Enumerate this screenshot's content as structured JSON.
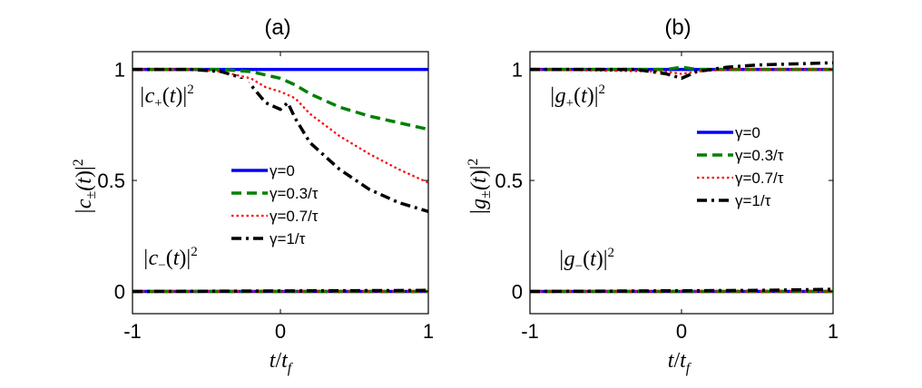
{
  "chart_data": [
    {
      "type": "line",
      "title": "(a)",
      "xlabel": "t/t_f",
      "ylabel": "|c±(t)|²",
      "xlim": [
        -1,
        1
      ],
      "ylim": [
        -0.1,
        1.08
      ],
      "xticks": [
        "-1",
        "0",
        "1"
      ],
      "yticks": [
        "0",
        "0.5",
        "1"
      ],
      "annotations": [
        "|c+(t)|²",
        "|c−(t)|²"
      ],
      "legend_position": "center-right",
      "series": [
        {
          "name": "γ=0",
          "color": "#0000ff",
          "dash": "solid",
          "upper": {
            "x": [
              -1,
              1
            ],
            "y": [
              1,
              1
            ]
          },
          "lower": {
            "x": [
              -1,
              1
            ],
            "y": [
              0,
              0
            ]
          }
        },
        {
          "name": "γ=0.3/τ",
          "color": "#008000",
          "dash": "dash",
          "upper": {
            "x": [
              -1,
              -0.6,
              -0.4,
              -0.2,
              0,
              0.1,
              0.2,
              0.4,
              0.6,
              0.8,
              1
            ],
            "y": [
              1,
              1,
              1,
              0.99,
              0.96,
              0.93,
              0.89,
              0.83,
              0.79,
              0.76,
              0.73
            ]
          },
          "lower": {
            "x": [
              -1,
              1
            ],
            "y": [
              0,
              0
            ]
          }
        },
        {
          "name": "γ=0.7/τ",
          "color": "#ff0000",
          "dash": "dot",
          "upper": {
            "x": [
              -1,
              -0.6,
              -0.4,
              -0.2,
              -0.1,
              0,
              0.1,
              0.2,
              0.4,
              0.6,
              0.8,
              1
            ],
            "y": [
              1,
              1,
              0.99,
              0.96,
              0.92,
              0.9,
              0.87,
              0.8,
              0.7,
              0.62,
              0.55,
              0.49
            ]
          },
          "lower": {
            "x": [
              -1,
              1
            ],
            "y": [
              0,
              0
            ]
          }
        },
        {
          "name": "γ=1/τ",
          "color": "#000000",
          "dash": "dashdot",
          "upper": {
            "x": [
              -1,
              -0.6,
              -0.4,
              -0.3,
              -0.2,
              -0.1,
              0,
              0.05,
              0.1,
              0.2,
              0.4,
              0.6,
              0.8,
              1
            ],
            "y": [
              1,
              1,
              0.99,
              0.97,
              0.93,
              0.85,
              0.82,
              0.85,
              0.78,
              0.67,
              0.55,
              0.46,
              0.4,
              0.36
            ]
          },
          "lower": {
            "x": [
              -1,
              1
            ],
            "y": [
              0,
              0.005
            ]
          }
        }
      ]
    },
    {
      "type": "line",
      "title": "(b)",
      "xlabel": "t/t_f",
      "ylabel": "|g±(t)|²",
      "xlim": [
        -1,
        1
      ],
      "ylim": [
        -0.1,
        1.08
      ],
      "xticks": [
        "-1",
        "0",
        "1"
      ],
      "yticks": [
        "0",
        "0.5",
        "1"
      ],
      "annotations": [
        "|g+(t)|²",
        "|g−(t)|²"
      ],
      "legend_position": "center-right",
      "series": [
        {
          "name": "γ=0",
          "color": "#0000ff",
          "dash": "solid",
          "upper": {
            "x": [
              -1,
              1
            ],
            "y": [
              1,
              1
            ]
          },
          "lower": {
            "x": [
              -1,
              1
            ],
            "y": [
              0,
              0
            ]
          }
        },
        {
          "name": "γ=0.3/τ",
          "color": "#008000",
          "dash": "dash",
          "upper": {
            "x": [
              -1,
              -0.1,
              0,
              0.1,
              0.3,
              1
            ],
            "y": [
              1,
              1,
              1.01,
              1,
              1,
              1
            ]
          },
          "lower": {
            "x": [
              -1,
              1
            ],
            "y": [
              0,
              0
            ]
          }
        },
        {
          "name": "γ=0.7/τ",
          "color": "#ff0000",
          "dash": "dot",
          "upper": {
            "x": [
              -1,
              -0.1,
              0,
              0.1,
              0.3,
              1
            ],
            "y": [
              1,
              0.99,
              0.98,
              0.99,
              1,
              1
            ]
          },
          "lower": {
            "x": [
              -1,
              1
            ],
            "y": [
              0,
              0
            ]
          }
        },
        {
          "name": "γ=1/τ",
          "color": "#000000",
          "dash": "dashdot",
          "upper": {
            "x": [
              -1,
              -0.3,
              -0.1,
              0,
              0.1,
              0.3,
              0.5,
              1
            ],
            "y": [
              1,
              1,
              0.98,
              0.96,
              0.99,
              1.01,
              1.02,
              1.03
            ]
          },
          "lower": {
            "x": [
              -1,
              0.5,
              1
            ],
            "y": [
              0,
              0.005,
              0.01
            ]
          }
        }
      ]
    }
  ]
}
